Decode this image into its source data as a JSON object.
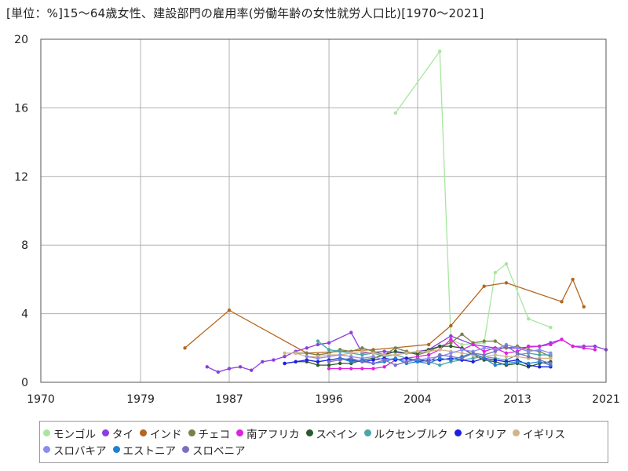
{
  "title": "[単位：%]15～64歳女性、建設部門の雇用率(労働年齢の女性就労人口比)[1970～2021]",
  "chart_data": {
    "type": "line",
    "title": "[単位：%]15～64歳女性、建設部門の雇用率(労働年齢の女性就労人口比)[1970～2021]",
    "xlabel": "",
    "ylabel": "",
    "xlim": [
      1970,
      2021
    ],
    "ylim": [
      0,
      20
    ],
    "xticks": [
      1970,
      1979,
      1987,
      1996,
      2004,
      2013,
      2021
    ],
    "yticks": [
      0,
      4,
      8,
      12,
      16,
      20
    ],
    "grid": true,
    "legend_position": "bottom",
    "series": [
      {
        "name": "モンゴル",
        "color": "#a8e6a0",
        "points": [
          [
            2002,
            15.7
          ],
          [
            2006,
            19.3
          ],
          [
            2007,
            2.5
          ],
          [
            2008,
            2.2
          ],
          [
            2010,
            2.3
          ],
          [
            2011,
            6.4
          ],
          [
            2012,
            6.9
          ],
          [
            2014,
            3.7
          ],
          [
            2016,
            3.2
          ]
        ]
      },
      {
        "name": "タイ",
        "color": "#8a3ee0",
        "points": [
          [
            1985,
            0.9
          ],
          [
            1986,
            0.6
          ],
          [
            1987,
            0.8
          ],
          [
            1988,
            0.9
          ],
          [
            1989,
            0.7
          ],
          [
            1990,
            1.2
          ],
          [
            1991,
            1.3
          ],
          [
            1992,
            1.5
          ],
          [
            1993,
            1.8
          ],
          [
            1994,
            2.0
          ],
          [
            1995,
            2.2
          ],
          [
            1996,
            2.3
          ],
          [
            1998,
            2.9
          ],
          [
            1999,
            1.7
          ],
          [
            2001,
            1.8
          ],
          [
            2003,
            1.7
          ],
          [
            2005,
            1.9
          ],
          [
            2007,
            2.7
          ],
          [
            2009,
            2.2
          ],
          [
            2011,
            2.0
          ],
          [
            2013,
            2.0
          ],
          [
            2015,
            2.1
          ],
          [
            2016,
            2.3
          ],
          [
            2017,
            2.5
          ],
          [
            2018,
            2.1
          ],
          [
            2019,
            2.1
          ],
          [
            2020,
            2.1
          ],
          [
            2021,
            1.9
          ]
        ]
      },
      {
        "name": "インド",
        "color": "#b5651d",
        "points": [
          [
            1983,
            2.0
          ],
          [
            1987,
            4.2
          ],
          [
            1994,
            1.7
          ],
          [
            2000,
            1.9
          ],
          [
            2005,
            2.2
          ],
          [
            2007,
            3.3
          ],
          [
            2010,
            5.6
          ],
          [
            2012,
            5.8
          ],
          [
            2017,
            4.7
          ],
          [
            2018,
            6.0
          ],
          [
            2019,
            4.4
          ]
        ]
      },
      {
        "name": "チェコ",
        "color": "#7c8048",
        "points": [
          [
            1993,
            1.7
          ],
          [
            1994,
            1.7
          ],
          [
            1995,
            1.6
          ],
          [
            1996,
            1.7
          ],
          [
            1997,
            1.9
          ],
          [
            1998,
            1.8
          ],
          [
            1999,
            2.0
          ],
          [
            2000,
            1.8
          ],
          [
            2001,
            1.6
          ],
          [
            2002,
            2.0
          ],
          [
            2003,
            1.8
          ],
          [
            2004,
            1.6
          ],
          [
            2005,
            1.8
          ],
          [
            2006,
            2.1
          ],
          [
            2007,
            2.3
          ],
          [
            2008,
            2.8
          ],
          [
            2009,
            2.3
          ],
          [
            2010,
            2.4
          ],
          [
            2011,
            2.4
          ],
          [
            2012,
            2.0
          ],
          [
            2013,
            2.1
          ],
          [
            2014,
            1.9
          ],
          [
            2015,
            1.8
          ],
          [
            2016,
            1.5
          ]
        ]
      },
      {
        "name": "南アフリカ",
        "color": "#e020e0",
        "points": [
          [
            1996,
            0.8
          ],
          [
            1997,
            0.8
          ],
          [
            1998,
            0.8
          ],
          [
            1999,
            0.8
          ],
          [
            2000,
            0.8
          ],
          [
            2001,
            0.9
          ],
          [
            2002,
            1.3
          ],
          [
            2003,
            1.4
          ],
          [
            2004,
            1.5
          ],
          [
            2005,
            1.6
          ],
          [
            2006,
            1.9
          ],
          [
            2007,
            2.5
          ],
          [
            2008,
            1.9
          ],
          [
            2009,
            2.2
          ],
          [
            2010,
            1.8
          ],
          [
            2011,
            2.0
          ],
          [
            2012,
            1.7
          ],
          [
            2013,
            1.8
          ],
          [
            2014,
            2.1
          ],
          [
            2015,
            2.1
          ],
          [
            2016,
            2.2
          ],
          [
            2017,
            2.5
          ],
          [
            2018,
            2.1
          ],
          [
            2019,
            2.0
          ],
          [
            2020,
            1.9
          ]
        ]
      },
      {
        "name": "スペイン",
        "color": "#2d5a2d",
        "points": [
          [
            1992,
            1.1
          ],
          [
            1993,
            1.2
          ],
          [
            1994,
            1.2
          ],
          [
            1995,
            1.0
          ],
          [
            1996,
            1.0
          ],
          [
            1997,
            1.1
          ],
          [
            1998,
            1.1
          ],
          [
            1999,
            1.3
          ],
          [
            2000,
            1.4
          ],
          [
            2001,
            1.6
          ],
          [
            2002,
            1.8
          ],
          [
            2003,
            1.7
          ],
          [
            2004,
            1.7
          ],
          [
            2005,
            1.9
          ],
          [
            2006,
            2.1
          ],
          [
            2007,
            2.1
          ],
          [
            2008,
            2.0
          ],
          [
            2009,
            1.6
          ],
          [
            2010,
            1.3
          ],
          [
            2011,
            1.2
          ],
          [
            2012,
            1.0
          ],
          [
            2013,
            1.1
          ],
          [
            2014,
            0.9
          ],
          [
            2015,
            1.1
          ],
          [
            2016,
            1.2
          ]
        ]
      },
      {
        "name": "ルクセンブルク",
        "color": "#4aa6a8",
        "points": [
          [
            1995,
            2.4
          ],
          [
            1996,
            1.9
          ],
          [
            1997,
            1.8
          ],
          [
            1998,
            1.7
          ],
          [
            1999,
            1.6
          ],
          [
            2000,
            1.7
          ],
          [
            2001,
            1.5
          ],
          [
            2002,
            1.6
          ],
          [
            2003,
            1.4
          ],
          [
            2004,
            1.3
          ],
          [
            2005,
            1.2
          ],
          [
            2006,
            1.0
          ],
          [
            2007,
            1.2
          ],
          [
            2008,
            1.3
          ],
          [
            2009,
            1.4
          ],
          [
            2010,
            1.5
          ],
          [
            2011,
            1.4
          ],
          [
            2012,
            1.3
          ],
          [
            2013,
            1.6
          ],
          [
            2014,
            1.7
          ],
          [
            2015,
            1.6
          ],
          [
            2016,
            1.6
          ]
        ]
      },
      {
        "name": "イタリア",
        "color": "#1e1ee0",
        "points": [
          [
            1992,
            1.1
          ],
          [
            1993,
            1.2
          ],
          [
            1994,
            1.3
          ],
          [
            1995,
            1.2
          ],
          [
            1996,
            1.3
          ],
          [
            1997,
            1.4
          ],
          [
            1998,
            1.3
          ],
          [
            1999,
            1.2
          ],
          [
            2000,
            1.3
          ],
          [
            2001,
            1.4
          ],
          [
            2002,
            1.3
          ],
          [
            2003,
            1.4
          ],
          [
            2004,
            1.2
          ],
          [
            2005,
            1.3
          ],
          [
            2006,
            1.3
          ],
          [
            2007,
            1.4
          ],
          [
            2008,
            1.3
          ],
          [
            2009,
            1.2
          ],
          [
            2010,
            1.4
          ],
          [
            2011,
            1.3
          ],
          [
            2012,
            1.2
          ],
          [
            2013,
            1.3
          ],
          [
            2014,
            1.0
          ],
          [
            2015,
            0.9
          ],
          [
            2016,
            0.9
          ]
        ]
      },
      {
        "name": "イギリス",
        "color": "#d2b48c",
        "points": [
          [
            1992,
            1.7
          ],
          [
            1993,
            1.7
          ],
          [
            1994,
            1.5
          ],
          [
            1995,
            1.5
          ],
          [
            1996,
            1.6
          ],
          [
            1997,
            1.6
          ],
          [
            1998,
            1.7
          ],
          [
            1999,
            1.8
          ],
          [
            2000,
            1.7
          ],
          [
            2001,
            1.6
          ],
          [
            2002,
            1.6
          ],
          [
            2003,
            1.7
          ],
          [
            2004,
            1.8
          ],
          [
            2005,
            1.8
          ],
          [
            2006,
            1.9
          ],
          [
            2007,
            1.8
          ],
          [
            2008,
            1.7
          ],
          [
            2009,
            1.6
          ],
          [
            2010,
            1.5
          ],
          [
            2011,
            1.6
          ],
          [
            2012,
            1.5
          ],
          [
            2013,
            1.5
          ],
          [
            2014,
            1.4
          ],
          [
            2015,
            1.4
          ],
          [
            2016,
            1.4
          ]
        ]
      },
      {
        "name": "スロバキア",
        "color": "#8c8cf0",
        "points": [
          [
            1994,
            1.5
          ],
          [
            1995,
            1.4
          ],
          [
            1996,
            1.5
          ],
          [
            1997,
            1.6
          ],
          [
            1998,
            1.5
          ],
          [
            1999,
            1.4
          ],
          [
            2000,
            1.5
          ],
          [
            2001,
            1.3
          ],
          [
            2002,
            1.4
          ],
          [
            2003,
            1.2
          ],
          [
            2004,
            1.3
          ],
          [
            2005,
            1.4
          ],
          [
            2006,
            1.5
          ],
          [
            2007,
            1.7
          ],
          [
            2008,
            1.9
          ],
          [
            2009,
            1.8
          ],
          [
            2010,
            2.0
          ],
          [
            2011,
            1.9
          ],
          [
            2012,
            2.2
          ],
          [
            2013,
            2.0
          ],
          [
            2014,
            1.8
          ],
          [
            2015,
            1.9
          ],
          [
            2016,
            1.7
          ]
        ]
      },
      {
        "name": "エストニア",
        "color": "#2080d0",
        "points": [
          [
            1997,
            1.4
          ],
          [
            1998,
            1.2
          ],
          [
            1999,
            1.3
          ],
          [
            2000,
            1.1
          ],
          [
            2001,
            1.2
          ],
          [
            2002,
            1.4
          ],
          [
            2003,
            1.1
          ],
          [
            2004,
            1.2
          ],
          [
            2005,
            1.1
          ],
          [
            2006,
            1.4
          ],
          [
            2007,
            1.3
          ],
          [
            2008,
            1.5
          ],
          [
            2009,
            1.7
          ],
          [
            2010,
            1.4
          ],
          [
            2011,
            1.0
          ],
          [
            2012,
            1.1
          ],
          [
            2013,
            1.2
          ],
          [
            2014,
            1.1
          ],
          [
            2015,
            1.2
          ],
          [
            2016,
            1.0
          ]
        ]
      },
      {
        "name": "スロベニア",
        "color": "#7a70c0",
        "points": [
          [
            1996,
            1.2
          ],
          [
            1997,
            1.3
          ],
          [
            1998,
            1.4
          ],
          [
            1999,
            1.2
          ],
          [
            2000,
            1.1
          ],
          [
            2001,
            1.3
          ],
          [
            2002,
            1.0
          ],
          [
            2003,
            1.2
          ],
          [
            2004,
            1.4
          ],
          [
            2005,
            1.2
          ],
          [
            2006,
            1.6
          ],
          [
            2007,
            1.5
          ],
          [
            2008,
            1.4
          ],
          [
            2009,
            1.7
          ],
          [
            2010,
            1.6
          ],
          [
            2011,
            1.8
          ],
          [
            2012,
            2.1
          ],
          [
            2013,
            1.7
          ],
          [
            2014,
            1.5
          ],
          [
            2015,
            1.3
          ],
          [
            2016,
            1.1
          ]
        ]
      }
    ]
  }
}
